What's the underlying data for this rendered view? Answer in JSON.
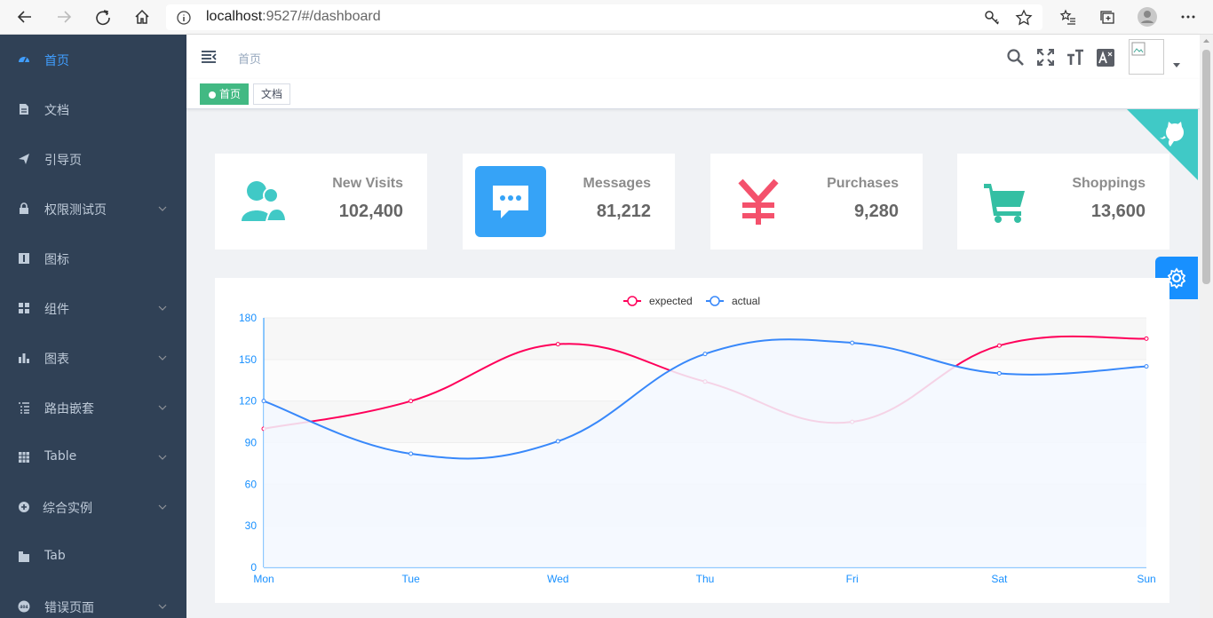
{
  "browser": {
    "url_host": "localhost",
    "url_path": ":9527/#/dashboard",
    "icons": [
      "back-icon",
      "forward-icon",
      "refresh-icon",
      "home-icon",
      "info-icon",
      "key-icon",
      "star-icon",
      "favorites-icon",
      "collections-icon",
      "profile-icon",
      "more-icon"
    ]
  },
  "sidebar": {
    "items": [
      {
        "label": "首页",
        "icon": "dashboard-icon",
        "active": true,
        "has_arrow": false
      },
      {
        "label": "文档",
        "icon": "document-icon",
        "active": false,
        "has_arrow": false
      },
      {
        "label": "引导页",
        "icon": "guide-icon",
        "active": false,
        "has_arrow": false
      },
      {
        "label": "权限测试页",
        "icon": "lock-icon",
        "active": false,
        "has_arrow": true
      },
      {
        "label": "图标",
        "icon": "icon-icon",
        "active": false,
        "has_arrow": false
      },
      {
        "label": "组件",
        "icon": "component-icon",
        "active": false,
        "has_arrow": true
      },
      {
        "label": "图表",
        "icon": "chart-icon",
        "active": false,
        "has_arrow": true
      },
      {
        "label": "路由嵌套",
        "icon": "nested-icon",
        "active": false,
        "has_arrow": true
      },
      {
        "label": "Table",
        "icon": "table-icon",
        "active": false,
        "has_arrow": true
      },
      {
        "label": "综合实例",
        "icon": "example-icon",
        "active": false,
        "has_arrow": true
      },
      {
        "label": "Tab",
        "icon": "tab-icon",
        "active": false,
        "has_arrow": false
      },
      {
        "label": "错误页面",
        "icon": "404-icon",
        "active": false,
        "has_arrow": true
      }
    ],
    "colors": {
      "bg": "#304156",
      "text": "#bfcbd9",
      "active": "#409eff"
    }
  },
  "navbar": {
    "breadcrumb": "首页",
    "tools": [
      "search-icon",
      "fullscreen-icon",
      "size-icon",
      "language-icon"
    ]
  },
  "tags": [
    {
      "label": "首页",
      "active": true
    },
    {
      "label": "文档",
      "active": false
    }
  ],
  "cards": [
    {
      "label": "New Visits",
      "value": "102,400",
      "icon": "peoples-icon",
      "color": "#40c9c6"
    },
    {
      "label": "Messages",
      "value": "81,212",
      "icon": "message-icon",
      "color": "#36a3f7"
    },
    {
      "label": "Purchases",
      "value": "9,280",
      "icon": "money-icon",
      "color": "#f4516c"
    },
    {
      "label": "Shoppings",
      "value": "13,600",
      "icon": "shopping-icon",
      "color": "#34bfa3"
    }
  ],
  "chart_data": {
    "type": "line",
    "categories": [
      "Mon",
      "Tue",
      "Wed",
      "Thu",
      "Fri",
      "Sat",
      "Sun"
    ],
    "series": [
      {
        "name": "expected",
        "values": [
          100,
          120,
          161,
          134,
          105,
          160,
          165
        ],
        "color": "#ff005a"
      },
      {
        "name": "actual",
        "values": [
          120,
          82,
          91,
          154,
          162,
          140,
          145
        ],
        "color": "#3888fa"
      }
    ],
    "ylim": [
      0,
      180
    ],
    "yticks": [
      0,
      30,
      60,
      90,
      120,
      150,
      180
    ],
    "legend": "top-center",
    "grid": true
  }
}
